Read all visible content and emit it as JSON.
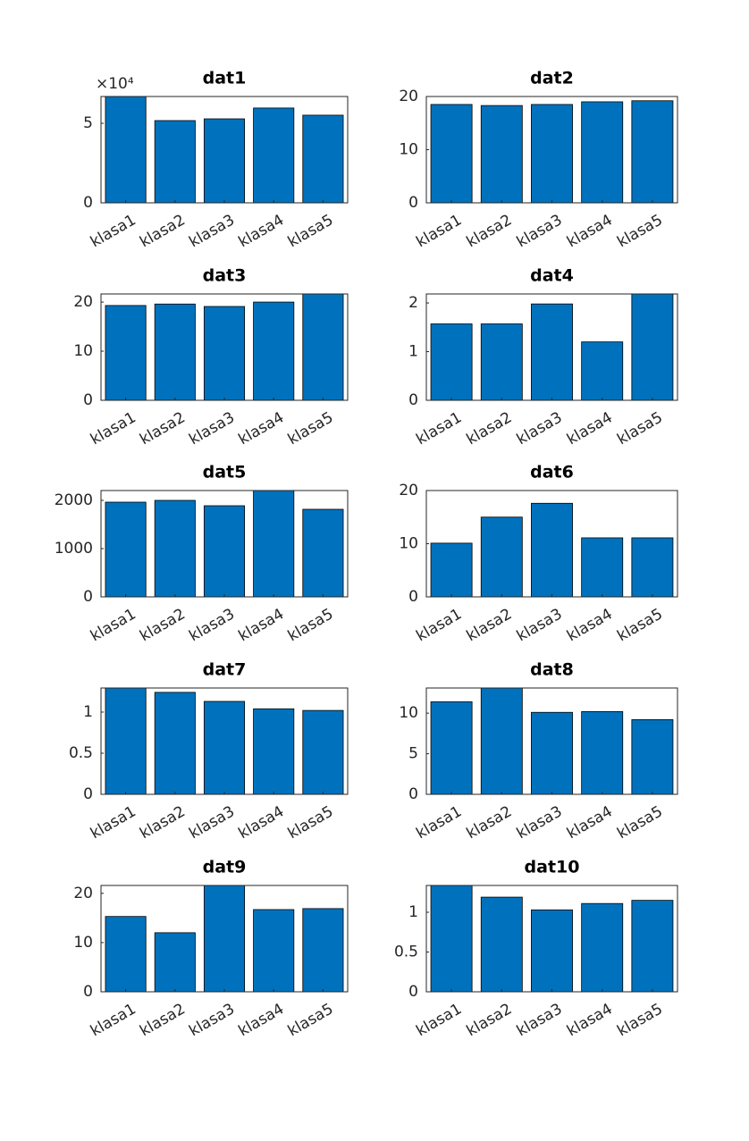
{
  "chart_data": [
    {
      "type": "bar",
      "title": "dat1",
      "categories": [
        "klasa1",
        "klasa2",
        "klasa3",
        "klasa4",
        "klasa5"
      ],
      "values": [
        66850,
        51700,
        52800,
        59600,
        55100
      ],
      "color": "#0072bd",
      "ylim": [
        0,
        66850
      ],
      "yticks": [
        0,
        {
          "value": 50000,
          "label": "5"
        }
      ],
      "y_exponent_label": "×10⁴"
    },
    {
      "type": "bar",
      "title": "dat2",
      "categories": [
        "klasa1",
        "klasa2",
        "klasa3",
        "klasa4",
        "klasa5"
      ],
      "values": [
        18.5,
        18.3,
        18.5,
        19.0,
        19.2
      ],
      "color": "#0072bd",
      "ylim": [
        0,
        20
      ],
      "yticks": [
        0,
        10,
        20
      ]
    },
    {
      "type": "bar",
      "title": "dat3",
      "categories": [
        "klasa1",
        "klasa2",
        "klasa3",
        "klasa4",
        "klasa5"
      ],
      "values": [
        19.3,
        19.6,
        19.1,
        20.0,
        21.65
      ],
      "color": "#0072bd",
      "ylim": [
        0,
        21.65
      ],
      "yticks": [
        0,
        10,
        20
      ]
    },
    {
      "type": "bar",
      "title": "dat4",
      "categories": [
        "klasa1",
        "klasa2",
        "klasa3",
        "klasa4",
        "klasa5"
      ],
      "values": [
        1.57,
        1.57,
        1.98,
        1.2,
        2.185
      ],
      "color": "#0072bd",
      "ylim": [
        0,
        2.185
      ],
      "yticks": [
        0,
        1,
        2
      ]
    },
    {
      "type": "bar",
      "title": "dat5",
      "categories": [
        "klasa1",
        "klasa2",
        "klasa3",
        "klasa4",
        "klasa5"
      ],
      "values": [
        1963,
        2000,
        1889,
        2204,
        1815
      ],
      "color": "#0072bd",
      "ylim": [
        0,
        2204
      ],
      "yticks": [
        0,
        1000,
        2000
      ]
    },
    {
      "type": "bar",
      "title": "dat6",
      "categories": [
        "klasa1",
        "klasa2",
        "klasa3",
        "klasa4",
        "klasa5"
      ],
      "values": [
        10.1,
        15.0,
        17.6,
        11.1,
        11.1
      ],
      "color": "#0072bd",
      "ylim": [
        0,
        20
      ],
      "yticks": [
        0,
        10,
        20
      ]
    },
    {
      "type": "bar",
      "title": "dat7",
      "categories": [
        "klasa1",
        "klasa2",
        "klasa3",
        "klasa4",
        "klasa5"
      ],
      "values": [
        1.293,
        1.24,
        1.13,
        1.04,
        1.02
      ],
      "color": "#0072bd",
      "ylim": [
        0,
        1.293
      ],
      "yticks": [
        0,
        0.5,
        1
      ]
    },
    {
      "type": "bar",
      "title": "dat8",
      "categories": [
        "klasa1",
        "klasa2",
        "klasa3",
        "klasa4",
        "klasa5"
      ],
      "values": [
        11.4,
        13.1,
        10.1,
        10.2,
        9.2
      ],
      "color": "#0072bd",
      "ylim": [
        0,
        13.1
      ],
      "yticks": [
        0,
        5,
        10
      ]
    },
    {
      "type": "bar",
      "title": "dat9",
      "categories": [
        "klasa1",
        "klasa2",
        "klasa3",
        "klasa4",
        "klasa5"
      ],
      "values": [
        15.3,
        12.0,
        21.6,
        16.7,
        16.9
      ],
      "color": "#0072bd",
      "ylim": [
        0,
        21.6
      ],
      "yticks": [
        0,
        10,
        20
      ]
    },
    {
      "type": "bar",
      "title": "dat10",
      "categories": [
        "klasa1",
        "klasa2",
        "klasa3",
        "klasa4",
        "klasa5"
      ],
      "values": [
        1.337,
        1.19,
        1.03,
        1.11,
        1.15
      ],
      "color": "#0072bd",
      "ylim": [
        0,
        1.337
      ],
      "yticks": [
        0,
        0.5,
        1
      ]
    }
  ]
}
